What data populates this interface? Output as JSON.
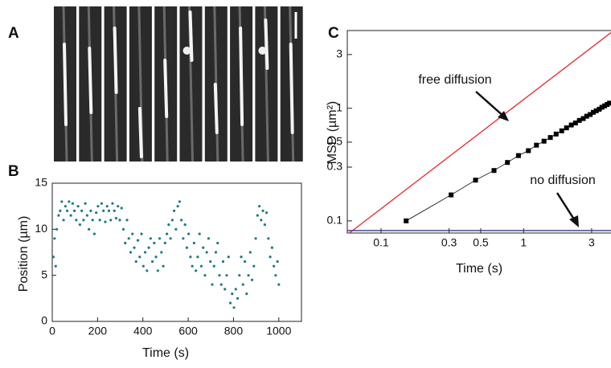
{
  "chart_data": [
    {
      "type": "image",
      "panel_label": "A"
    },
    {
      "type": "scatter",
      "panel_label": "B",
      "xlabel": "Time (s)",
      "ylabel": "Position (µm)",
      "color": "#1f7a82",
      "xlim": [
        0,
        1100
      ],
      "ylim": [
        0,
        15
      ],
      "xticks": [
        0,
        200,
        400,
        600,
        800,
        1000
      ],
      "yticks": [
        0,
        5,
        10,
        15
      ],
      "x": [
        5,
        10,
        15,
        20,
        28,
        35,
        42,
        50,
        58,
        66,
        74,
        82,
        90,
        98,
        106,
        114,
        122,
        130,
        138,
        146,
        154,
        162,
        170,
        178,
        186,
        194,
        202,
        210,
        218,
        226,
        234,
        242,
        250,
        258,
        266,
        274,
        282,
        290,
        298,
        306,
        314,
        322,
        330,
        338,
        346,
        354,
        362,
        370,
        378,
        386,
        394,
        402,
        410,
        418,
        426,
        434,
        442,
        450,
        458,
        466,
        474,
        482,
        490,
        498,
        506,
        514,
        522,
        530,
        538,
        546,
        554,
        562,
        570,
        578,
        586,
        594,
        602,
        610,
        618,
        626,
        634,
        642,
        650,
        658,
        666,
        674,
        682,
        690,
        698,
        706,
        714,
        722,
        730,
        738,
        746,
        754,
        762,
        770,
        778,
        786,
        794,
        802,
        810,
        818,
        826,
        834,
        842,
        850,
        858,
        866,
        874,
        882,
        890,
        898,
        906,
        914,
        922,
        930,
        938,
        946,
        954,
        962,
        970,
        978,
        986,
        994,
        1000
      ],
      "values": [
        7,
        9,
        6,
        10,
        11.5,
        12,
        13,
        11,
        12.5,
        12,
        13,
        11.5,
        12.8,
        12,
        11,
        12.5,
        10.5,
        12,
        11,
        12.8,
        11.5,
        10,
        12,
        11,
        9.5,
        11.8,
        12.5,
        11,
        12.8,
        12,
        10.8,
        12.5,
        12,
        11,
        12.8,
        12,
        11.2,
        12.5,
        11,
        12.3,
        10,
        8.5,
        11,
        9,
        7.5,
        9.5,
        8,
        6.5,
        8.8,
        7,
        9.5,
        6,
        7.5,
        5.5,
        8,
        9,
        6.5,
        8.5,
        7,
        5.5,
        9,
        7.5,
        6,
        8.5,
        9.5,
        10.5,
        9,
        11,
        12,
        10,
        12.5,
        13,
        11,
        9,
        10.5,
        8,
        9.5,
        7,
        6,
        8.5,
        5.5,
        7,
        9.5,
        6,
        8,
        5,
        7.5,
        9,
        6.5,
        4,
        6,
        7.5,
        8.5,
        5,
        4,
        6.5,
        3.5,
        5,
        7,
        2,
        3,
        1.5,
        3.5,
        2.5,
        5,
        7,
        4,
        6.5,
        3,
        5,
        7.5,
        4.5,
        6,
        9,
        11.5,
        12.5,
        11,
        12,
        10.5,
        11.8,
        9,
        7,
        8,
        6,
        5,
        6.5,
        4
      ]
    },
    {
      "type": "line",
      "panel_label": "C",
      "xlabel": "Time (s)",
      "ylabel": "MSD (µm²)",
      "log_x": true,
      "log_y": true,
      "xlim": [
        0.058,
        4.1
      ],
      "ylim": [
        0.078,
        4.9
      ],
      "xticks": [
        0.1,
        0.3,
        0.5,
        1,
        3
      ],
      "yticks": [
        0.1,
        0.3,
        0.5,
        1,
        3
      ],
      "series": [
        {
          "name": "free diffusion",
          "color": "#e8262a",
          "x": [
            0.06,
            4.1
          ],
          "values": [
            0.078,
            4.7
          ]
        },
        {
          "name": "no diffusion",
          "color": "#2b3a8c",
          "x": [
            0.058,
            4.1
          ],
          "values": [
            0.082,
            0.082
          ]
        },
        {
          "color": "#000000",
          "markers": true,
          "x": [
            0.15,
            0.31,
            0.46,
            0.62,
            0.77,
            0.92,
            1.08,
            1.23,
            1.39,
            1.54,
            1.69,
            1.85,
            2.0,
            2.16,
            2.31,
            2.46,
            2.62,
            2.77,
            2.93,
            3.08,
            3.23,
            3.39,
            3.54,
            3.7,
            3.85,
            4.0
          ],
          "values": [
            0.1,
            0.17,
            0.23,
            0.28,
            0.33,
            0.38,
            0.42,
            0.47,
            0.51,
            0.55,
            0.59,
            0.63,
            0.67,
            0.71,
            0.74,
            0.78,
            0.81,
            0.85,
            0.88,
            0.92,
            0.95,
            0.98,
            1.02,
            1.05,
            1.08,
            1.11
          ]
        }
      ]
    }
  ]
}
